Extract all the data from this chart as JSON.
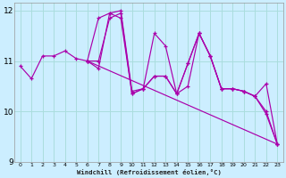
{
  "xlabel": "Windchill (Refroidissement éolien,°C)",
  "xlim": [
    -0.5,
    23.5
  ],
  "ylim": [
    9,
    12.15
  ],
  "yticks": [
    9,
    10,
    11,
    12
  ],
  "xticks": [
    0,
    1,
    2,
    3,
    4,
    5,
    6,
    7,
    8,
    9,
    10,
    11,
    12,
    13,
    14,
    15,
    16,
    17,
    18,
    19,
    20,
    21,
    22,
    23
  ],
  "background_color": "#cceeff",
  "grid_color": "#aadddd",
  "line_color": "#aa00aa",
  "lines": [
    {
      "x": [
        0,
        1,
        2,
        3,
        4,
        5,
        6,
        7,
        8,
        9,
        10,
        11,
        12,
        13,
        14,
        15,
        16,
        17,
        18,
        19,
        20,
        21,
        22,
        23
      ],
      "y": [
        10.9,
        10.65,
        11.1,
        11.1,
        11.2,
        11.05,
        11.0,
        11.85,
        11.95,
        11.85,
        10.35,
        10.45,
        11.55,
        11.3,
        10.35,
        10.5,
        11.55,
        11.1,
        10.45,
        10.45,
        10.4,
        10.3,
        9.95,
        9.35
      ]
    },
    {
      "x": [
        6,
        7,
        8,
        9,
        10,
        11,
        12,
        13,
        14,
        15,
        16,
        17,
        18,
        19,
        20,
        21,
        22,
        23
      ],
      "y": [
        11.0,
        11.0,
        11.85,
        11.95,
        10.35,
        10.45,
        10.7,
        10.7,
        10.35,
        10.95,
        11.55,
        11.1,
        10.45,
        10.45,
        10.4,
        10.3,
        10.55,
        9.35
      ]
    },
    {
      "x": [
        6,
        23
      ],
      "y": [
        11.0,
        9.35
      ]
    },
    {
      "x": [
        6,
        7,
        8,
        9,
        10,
        11,
        12,
        13,
        14,
        15,
        16,
        17,
        18,
        19,
        20,
        21,
        22,
        23
      ],
      "y": [
        11.0,
        10.85,
        11.95,
        12.0,
        10.4,
        10.45,
        10.7,
        10.7,
        10.35,
        10.95,
        11.55,
        11.1,
        10.45,
        10.45,
        10.4,
        10.3,
        10.0,
        9.35
      ]
    }
  ]
}
